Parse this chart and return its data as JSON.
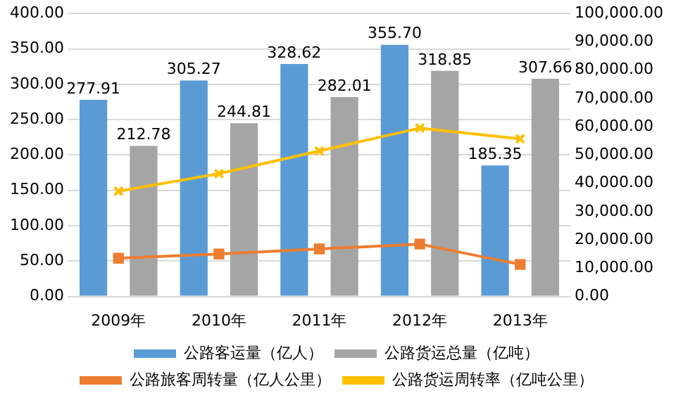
{
  "chart_data": {
    "type": "bar",
    "categories": [
      "2009年",
      "2010年",
      "2011年",
      "2012年",
      "2013年"
    ],
    "series": [
      {
        "name": "公路客运量（亿人）",
        "color": "#5b9bd5",
        "values": [
          277.91,
          305.27,
          328.62,
          355.7,
          185.35
        ],
        "value_labels": [
          "277.91",
          "305.27",
          "328.62",
          "355.70",
          "185.35"
        ]
      },
      {
        "name": "公路货运总量（亿吨）",
        "color": "#a5a5a5",
        "values": [
          212.78,
          244.81,
          282.01,
          318.85,
          307.66
        ],
        "value_labels": [
          "212.78",
          "244.81",
          "282.01",
          "318.85",
          "307.66"
        ]
      },
      {
        "name": "公路旅客周转量（亿人公里）",
        "type": "line",
        "axis": "y2",
        "marker": "square",
        "color": "#ed7d31",
        "values": [
          13500,
          15000,
          16800,
          18500,
          11300
        ]
      },
      {
        "name": "公路货运周转率（亿吨公里）",
        "type": "line",
        "axis": "y2",
        "marker": "cross",
        "color": "#ffc000",
        "values": [
          37200,
          43400,
          51400,
          59500,
          55700
        ]
      }
    ],
    "ylim": [
      0,
      400
    ],
    "yticks": [
      {
        "value": 0,
        "label": "0.00"
      },
      {
        "value": 50,
        "label": "50.00"
      },
      {
        "value": 100,
        "label": "100.00"
      },
      {
        "value": 150,
        "label": "150.00"
      },
      {
        "value": 200,
        "label": "200.00"
      },
      {
        "value": 250,
        "label": "250.00"
      },
      {
        "value": 300,
        "label": "300.00"
      },
      {
        "value": 350,
        "label": "350.00"
      },
      {
        "value": 400,
        "label": "400.00"
      }
    ],
    "y2lim": [
      0,
      100000
    ],
    "y2ticks": [
      {
        "value": 0,
        "label": "0.00"
      },
      {
        "value": 10000,
        "label": "10,000.00"
      },
      {
        "value": 20000,
        "label": "20,000.00"
      },
      {
        "value": 30000,
        "label": "30,000.00"
      },
      {
        "value": 40000,
        "label": "40,000.00"
      },
      {
        "value": 50000,
        "label": "50,000.00"
      },
      {
        "value": 60000,
        "label": "60,000.00"
      },
      {
        "value": 70000,
        "label": "70,000.00"
      },
      {
        "value": 80000,
        "label": "80,000.00"
      },
      {
        "value": 90000,
        "label": "90,000.00"
      },
      {
        "value": 100000,
        "label": "100,000.00"
      }
    ],
    "grid": "y",
    "legend": "bottom"
  }
}
